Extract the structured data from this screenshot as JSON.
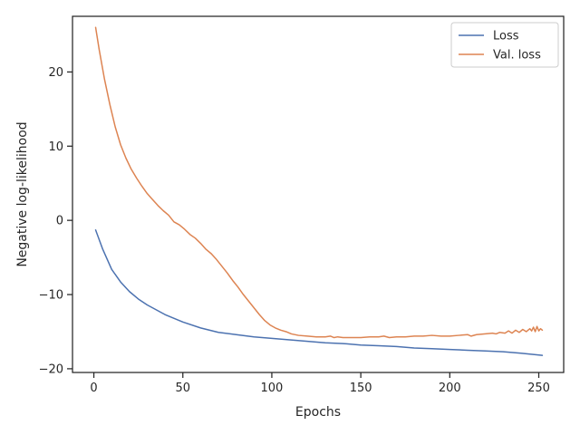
{
  "chart_data": {
    "type": "line",
    "title": "",
    "xlabel": "Epochs",
    "ylabel": "Negative log-likelihood",
    "xlim": [
      -12,
      264
    ],
    "ylim": [
      -20.5,
      27.5
    ],
    "xticks": [
      0,
      50,
      100,
      150,
      200,
      250
    ],
    "yticks": [
      -20,
      -10,
      0,
      10,
      20
    ],
    "xtick_labels": [
      "0",
      "50",
      "100",
      "150",
      "200",
      "250"
    ],
    "ytick_labels": [
      "−20",
      "−10",
      "0",
      "10",
      "20"
    ],
    "grid": false,
    "legend": {
      "position": "top-right"
    },
    "series": [
      {
        "name": "Loss",
        "color": "#4c72b0",
        "x": [
          1,
          5,
          10,
          15,
          20,
          25,
          30,
          40,
          50,
          60,
          70,
          80,
          90,
          100,
          110,
          120,
          130,
          140,
          150,
          160,
          170,
          180,
          190,
          200,
          210,
          220,
          230,
          240,
          252
        ],
        "y": [
          -1.3,
          -3.9,
          -6.6,
          -8.3,
          -9.6,
          -10.6,
          -11.4,
          -12.7,
          -13.7,
          -14.5,
          -15.1,
          -15.4,
          -15.7,
          -15.9,
          -16.1,
          -16.3,
          -16.5,
          -16.6,
          -16.8,
          -16.9,
          -17.0,
          -17.2,
          -17.3,
          -17.4,
          -17.5,
          -17.6,
          -17.7,
          -17.9,
          -18.2
        ]
      },
      {
        "name": "Val. loss",
        "color": "#dd8452",
        "x": [
          1,
          3,
          6,
          9,
          12,
          15,
          18,
          21,
          24,
          27,
          30,
          33,
          36,
          39,
          42,
          45,
          48,
          51,
          54,
          57,
          60,
          63,
          66,
          69,
          72,
          75,
          78,
          81,
          84,
          87,
          90,
          93,
          96,
          99,
          102,
          105,
          108,
          111,
          115,
          120,
          125,
          130,
          133,
          135,
          137,
          140,
          145,
          150,
          155,
          160,
          163,
          166,
          170,
          175,
          180,
          185,
          190,
          195,
          200,
          205,
          210,
          212,
          215,
          220,
          224,
          226,
          228,
          231,
          233,
          235,
          237,
          239,
          241,
          243,
          245,
          246,
          247,
          248,
          249,
          250,
          251,
          252
        ],
        "y": [
          26.0,
          23.0,
          19.0,
          15.6,
          12.6,
          10.2,
          8.4,
          6.9,
          5.7,
          4.6,
          3.6,
          2.8,
          2.0,
          1.3,
          0.7,
          -0.2,
          -0.6,
          -1.2,
          -1.9,
          -2.4,
          -3.1,
          -3.9,
          -4.5,
          -5.3,
          -6.2,
          -7.1,
          -8.1,
          -9.0,
          -10.0,
          -10.9,
          -11.8,
          -12.7,
          -13.5,
          -14.1,
          -14.5,
          -14.8,
          -15.0,
          -15.3,
          -15.5,
          -15.6,
          -15.7,
          -15.7,
          -15.6,
          -15.8,
          -15.7,
          -15.8,
          -15.8,
          -15.8,
          -15.7,
          -15.7,
          -15.6,
          -15.8,
          -15.7,
          -15.7,
          -15.6,
          -15.6,
          -15.5,
          -15.6,
          -15.6,
          -15.5,
          -15.4,
          -15.6,
          -15.4,
          -15.3,
          -15.2,
          -15.3,
          -15.1,
          -15.2,
          -14.9,
          -15.2,
          -14.8,
          -15.1,
          -14.7,
          -15.0,
          -14.6,
          -14.9,
          -14.4,
          -15.0,
          -14.3,
          -14.9,
          -14.6,
          -14.8
        ]
      }
    ]
  }
}
